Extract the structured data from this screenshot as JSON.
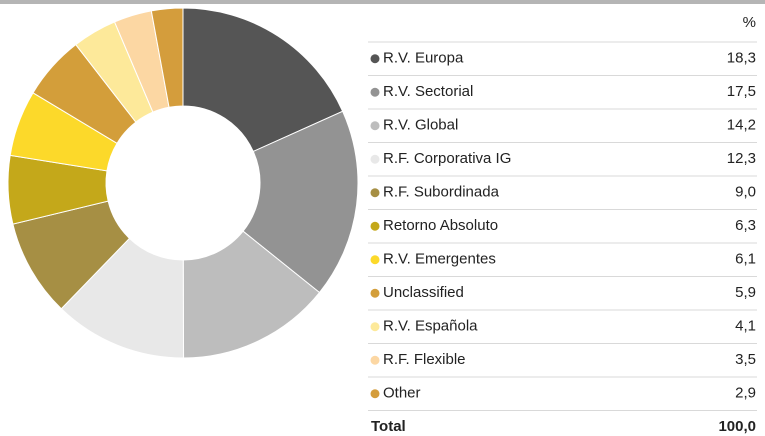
{
  "chart_data": {
    "type": "donut",
    "column_header": "%",
    "categories": [
      "R.V. Europa",
      "R.V. Sectorial",
      "R.V. Global",
      "R.F. Corporativa IG",
      "R.F. Subordinada",
      "Retorno Absoluto",
      "R.V. Emergentes",
      "Unclassified",
      "R.V. Española",
      "R.F. Flexible",
      "Other"
    ],
    "values": [
      18.3,
      17.5,
      14.2,
      12.3,
      9.0,
      6.3,
      6.1,
      5.9,
      4.1,
      3.5,
      2.9
    ],
    "value_labels": [
      "18,3",
      "17,5",
      "14,2",
      "12,3",
      "9,0",
      "6,3",
      "6,1",
      "5,9",
      "4,1",
      "3,5",
      "2,9"
    ],
    "colors": [
      "#555555",
      "#939393",
      "#bdbdbd",
      "#e8e8e8",
      "#a68f44",
      "#c4a81a",
      "#fcd92a",
      "#d39e3a",
      "#fde99a",
      "#fcd7a3",
      "#d49d3c"
    ],
    "total": {
      "label": "Total",
      "value": 100.0,
      "value_label": "100,0"
    }
  }
}
